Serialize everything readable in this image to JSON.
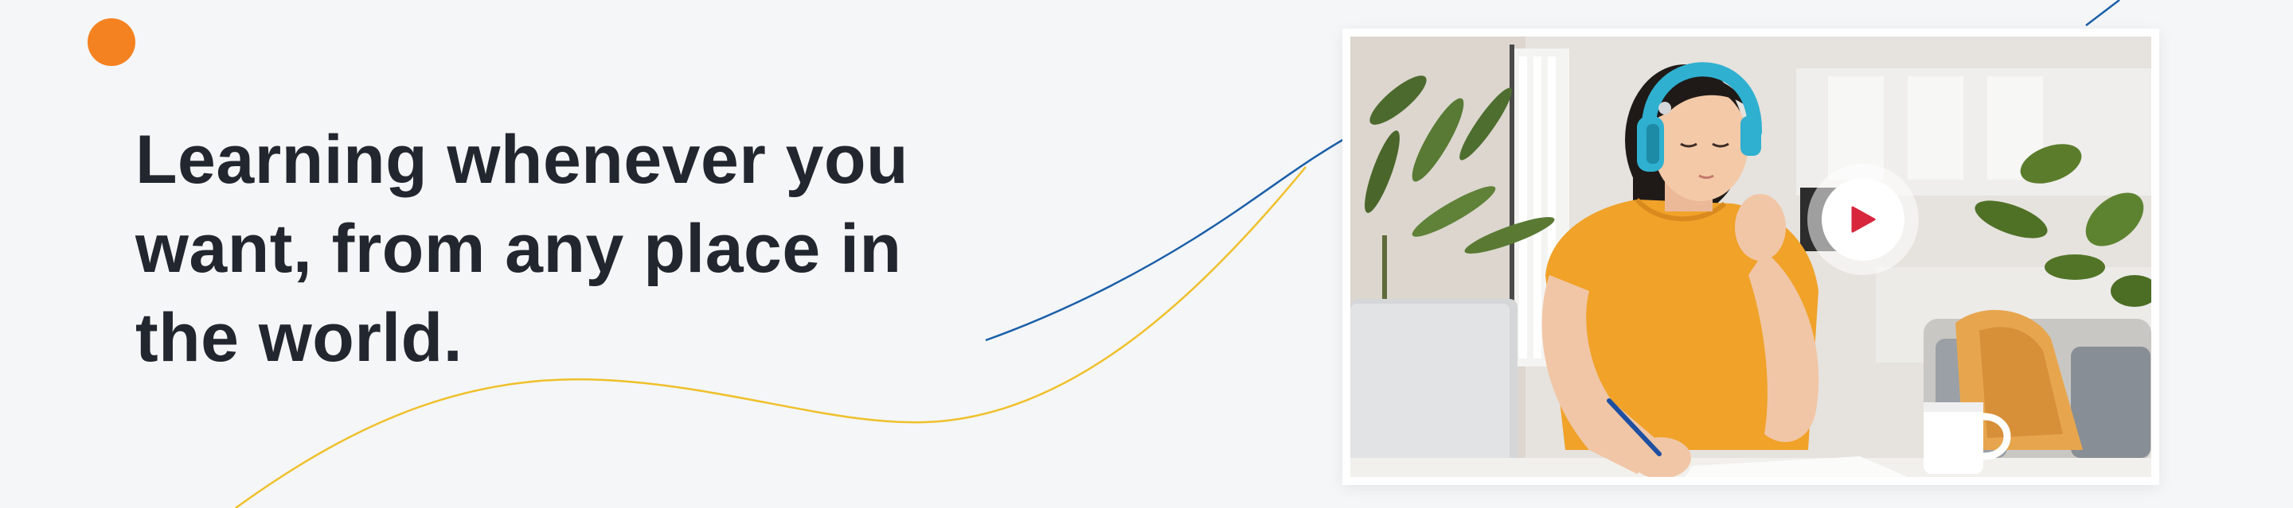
{
  "hero": {
    "headline": "Learning whenever you want, from any place in the world."
  },
  "video": {
    "play_icon": "play-icon"
  },
  "colors": {
    "background": "#f4f6f8",
    "headline": "#22262e",
    "accent_orange": "#f58220",
    "line_blue": "#1b5fa8",
    "line_yellow": "#f0c02a",
    "play_red": "#d8263d",
    "shirt_orange": "#f0a229",
    "headphones_blue": "#2fb0d0"
  }
}
